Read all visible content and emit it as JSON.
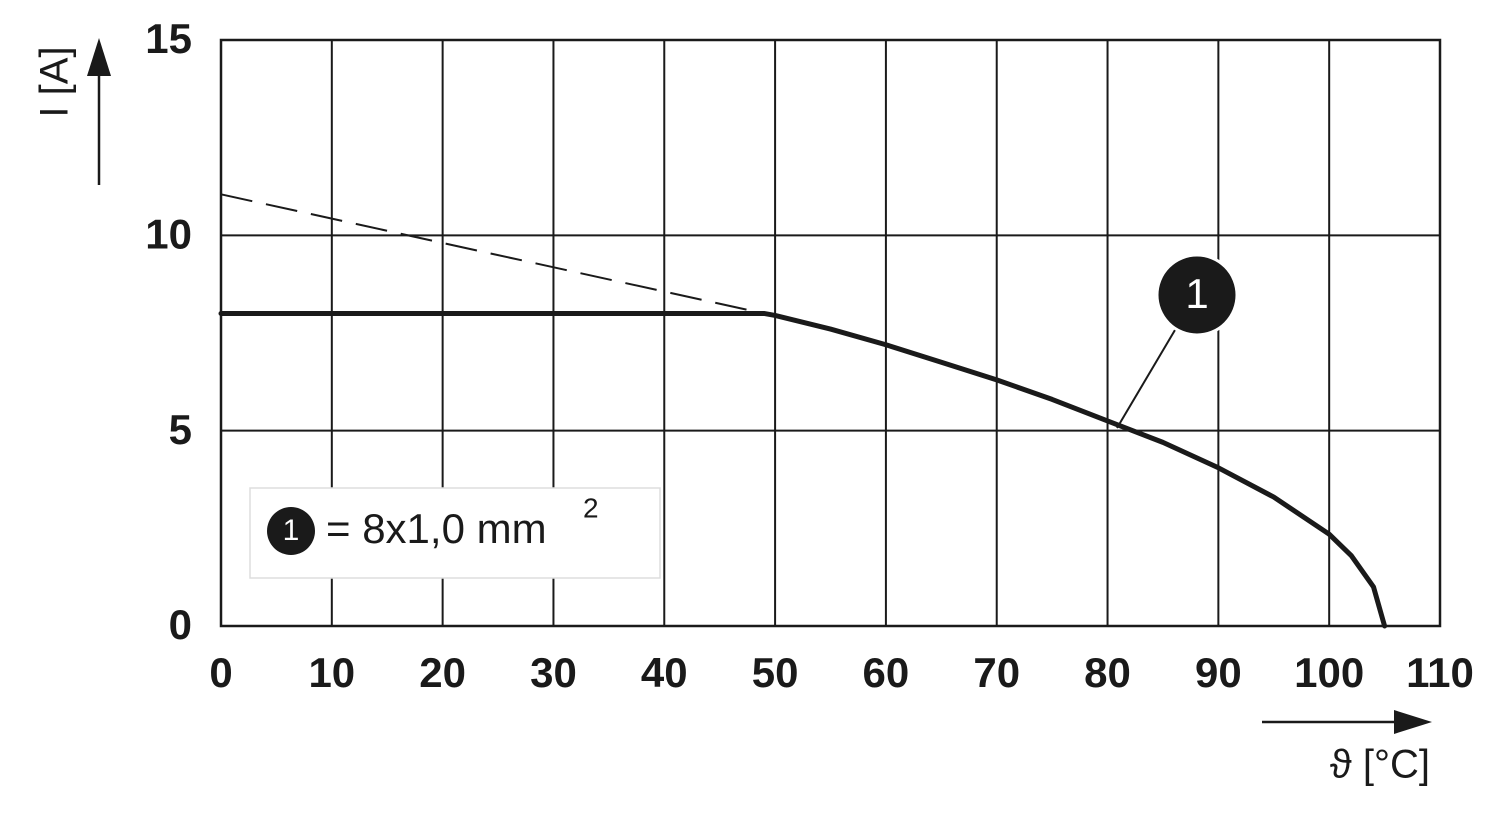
{
  "chart_data": {
    "type": "line",
    "x_label": "ϑ [°C]",
    "y_label": "I [A]",
    "xlim": [
      0,
      110
    ],
    "xticks": [
      0,
      10,
      20,
      30,
      40,
      50,
      60,
      70,
      80,
      90,
      100,
      110
    ],
    "ylim": [
      0,
      15
    ],
    "yticks": [
      0,
      5,
      10,
      15
    ],
    "grid": true,
    "series": [
      {
        "color": "#1a1a1a",
        "style": "solid",
        "x": [
          0,
          49,
          50,
          55,
          60,
          65,
          70,
          75,
          80,
          85,
          90,
          95,
          100,
          102,
          104,
          105
        ],
        "values": [
          8,
          8,
          7.95,
          7.6,
          7.2,
          6.75,
          6.3,
          5.8,
          5.25,
          4.7,
          4.05,
          3.3,
          2.35,
          1.8,
          1.0,
          0
        ]
      },
      {
        "color": "#1a1a1a",
        "style": "dashed",
        "x": [
          0,
          49
        ],
        "values": [
          11.05,
          8
        ]
      }
    ],
    "callout": "1",
    "legend": {
      "marker": "1",
      "text": "= 8x1,0 mm",
      "superscript": "2"
    }
  }
}
